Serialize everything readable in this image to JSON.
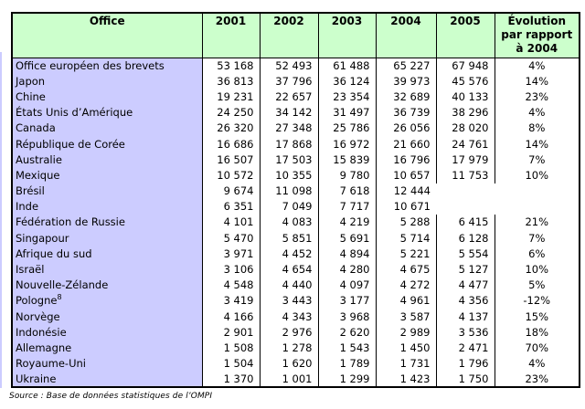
{
  "table": {
    "header": {
      "office_label": "Office",
      "years": [
        "2001",
        "2002",
        "2003",
        "2004",
        "2005"
      ],
      "evolution_lines": [
        "Évolution",
        "par rapport",
        "à 2004"
      ]
    },
    "rows": [
      {
        "office": "Office européen des brevets",
        "values": [
          "53 168",
          "52 493",
          "61 488",
          "65 227",
          "67 948"
        ],
        "evolution": "4%"
      },
      {
        "office": "Japon",
        "values": [
          "36 813",
          "37 796",
          "36 124",
          "39 973",
          "45 576"
        ],
        "evolution": "14%"
      },
      {
        "office": "Chine",
        "values": [
          "19 231",
          "22 657",
          "23 354",
          "32 689",
          "40 133"
        ],
        "evolution": "23%"
      },
      {
        "office": "États Unis d’Amérique",
        "values": [
          "24 250",
          "34 142",
          "31 497",
          "36 739",
          "38 296"
        ],
        "evolution": "4%"
      },
      {
        "office": "Canada",
        "values": [
          "26 320",
          "27 348",
          "25 786",
          "26 056",
          "28 020"
        ],
        "evolution": "8%"
      },
      {
        "office": "République de Corée",
        "values": [
          "16 686",
          "17 868",
          "16 972",
          "21 660",
          "24 761"
        ],
        "evolution": "14%"
      },
      {
        "office": "Australie",
        "values": [
          "16 507",
          "17 503",
          "15 839",
          "16 796",
          "17 979"
        ],
        "evolution": "7%"
      },
      {
        "office": "Mexique",
        "values": [
          "10 572",
          "10 355",
          "9 780",
          "10 657",
          "11 753"
        ],
        "evolution": "10%"
      },
      {
        "office": "Brésil",
        "values": [
          "9 674",
          "11 098",
          "7 618",
          "12 444",
          ""
        ],
        "evolution": ""
      },
      {
        "office": "Inde",
        "values": [
          "6 351",
          "7 049",
          "7 717",
          "10 671",
          ""
        ],
        "evolution": ""
      },
      {
        "office": "Fédération de Russie",
        "values": [
          "4 101",
          "4 083",
          "4 219",
          "5 288",
          "6 415"
        ],
        "evolution": "21%"
      },
      {
        "office": "Singapour",
        "values": [
          "5 470",
          "5 851",
          "5 691",
          "5 714",
          "6 128"
        ],
        "evolution": "7%"
      },
      {
        "office": "Afrique du sud",
        "values": [
          "3 971",
          "4 452",
          "4 894",
          "5 221",
          "5 554"
        ],
        "evolution": "6%"
      },
      {
        "office": "Israël",
        "values": [
          "3 106",
          "4 654",
          "4 280",
          "4 675",
          "5 127"
        ],
        "evolution": "10%"
      },
      {
        "office": "Nouvelle-Zélande",
        "values": [
          "4 548",
          "4 440",
          "4 097",
          "4 272",
          "4 477"
        ],
        "evolution": "5%"
      },
      {
        "office": "Pologne",
        "office_sup": "8",
        "values": [
          "3 419",
          "3 443",
          "3 177",
          "4 961",
          "4 356"
        ],
        "evolution": "-12%"
      },
      {
        "office": "Norvège",
        "values": [
          "4 166",
          "4 343",
          "3 968",
          "3 587",
          "4 137"
        ],
        "evolution": "15%"
      },
      {
        "office": "Indonésie",
        "values": [
          "2 901",
          "2 976",
          "2 620",
          "2 989",
          "3 536"
        ],
        "evolution": "18%"
      },
      {
        "office": "Allemagne",
        "values": [
          "1 508",
          "1 278",
          "1 543",
          "1 450",
          "2 471"
        ],
        "evolution": "70%"
      },
      {
        "office": "Royaume-Uni",
        "values": [
          "1 504",
          "1 620",
          "1 789",
          "1 731",
          "1 796"
        ],
        "evolution": "4%"
      },
      {
        "office": "Ukraine",
        "values": [
          "1 370",
          "1 001",
          "1 299",
          "1 423",
          "1 750"
        ],
        "evolution": "23%"
      }
    ]
  },
  "source_note": "Source : Base de données statistiques de l’OMPI",
  "colors": {
    "header_bg": "#ccffcc",
    "office_col_bg": "#ccccff",
    "border": "#000000",
    "background": "#ffffff"
  }
}
